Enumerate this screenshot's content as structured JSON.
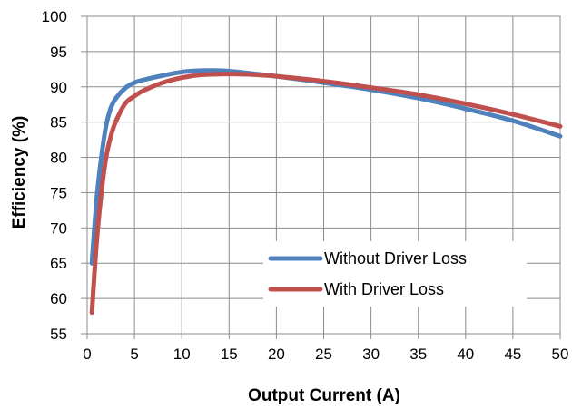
{
  "chart_data": {
    "type": "line",
    "xlabel": "Output Current (A)",
    "ylabel": "Efficiency (%)",
    "xlim": [
      0,
      50
    ],
    "ylim": [
      55,
      100
    ],
    "xticks": [
      "0",
      "5",
      "10",
      "15",
      "20",
      "25",
      "30",
      "35",
      "40",
      "45",
      "50"
    ],
    "yticks": [
      "55",
      "60",
      "65",
      "70",
      "75",
      "80",
      "85",
      "90",
      "95",
      "100"
    ],
    "grid": true,
    "legend_position": "lower-right",
    "series": [
      {
        "name": "Without Driver Loss",
        "color": "#4F81BD",
        "x": [
          0.5,
          1,
          1.5,
          2,
          2.5,
          3,
          4,
          5,
          6,
          8,
          10,
          12,
          14,
          16,
          18,
          20,
          25,
          30,
          35,
          40,
          45,
          50
        ],
        "y": [
          65,
          74,
          80,
          84.5,
          87,
          88.3,
          89.8,
          90.6,
          91,
          91.6,
          92.1,
          92.3,
          92.3,
          92.1,
          91.8,
          91.5,
          90.6,
          89.6,
          88.4,
          86.9,
          85.2,
          83
        ]
      },
      {
        "name": "With Driver Loss",
        "color": "#C0504D",
        "x": [
          0.5,
          1,
          1.5,
          2,
          2.5,
          3,
          4,
          5,
          6,
          8,
          10,
          12,
          14,
          16,
          18,
          20,
          25,
          30,
          35,
          40,
          45,
          50
        ],
        "y": [
          58,
          68,
          75,
          80,
          83,
          85,
          87.6,
          88.7,
          89.5,
          90.6,
          91.3,
          91.7,
          91.8,
          91.8,
          91.7,
          91.5,
          90.8,
          89.9,
          88.9,
          87.6,
          86.1,
          84.4
        ]
      }
    ]
  }
}
